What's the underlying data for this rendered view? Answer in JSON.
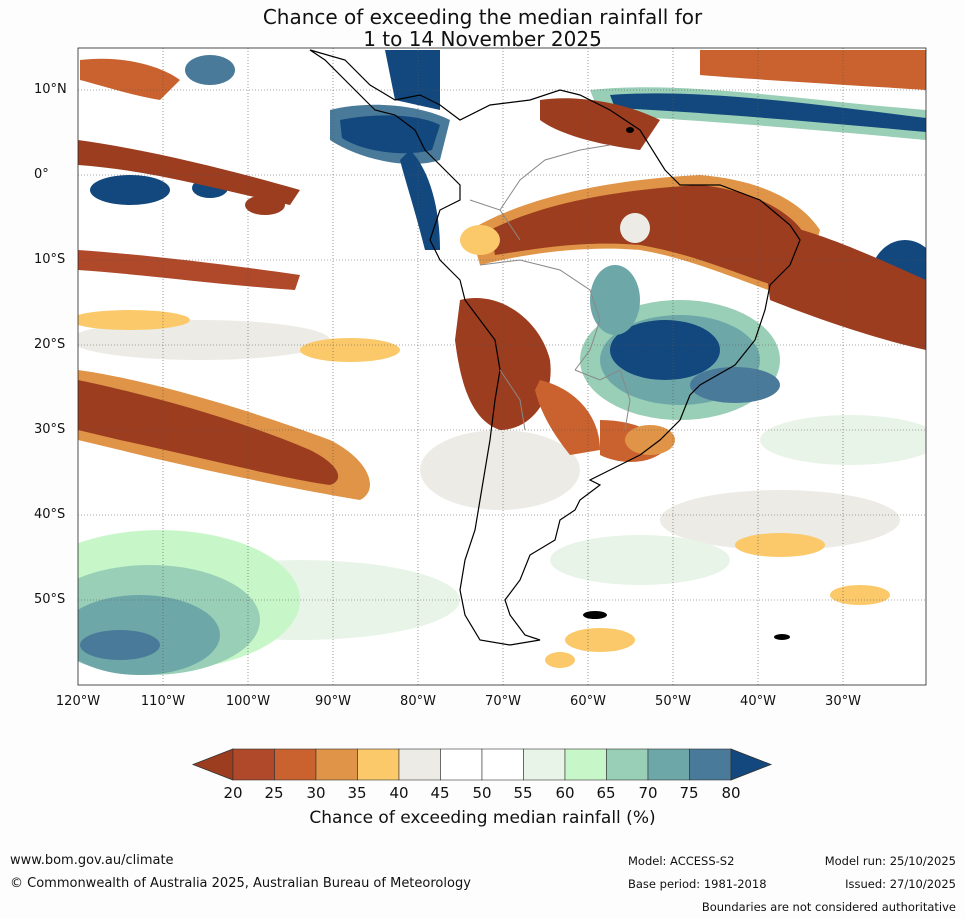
{
  "title": {
    "line1": "Chance of exceeding the median rainfall for",
    "line2": "1 to 14 November 2025"
  },
  "map": {
    "lat_labels": [
      "10°N",
      "0°",
      "10°S",
      "20°S",
      "30°S",
      "40°S",
      "50°S"
    ],
    "lon_labels": [
      "120°W",
      "110°W",
      "100°W",
      "90°W",
      "80°W",
      "70°W",
      "60°W",
      "50°W",
      "40°W",
      "30°W"
    ],
    "extent": {
      "lon_min": -120,
      "lon_max": -20,
      "lat_min": -60,
      "lat_max": 15
    }
  },
  "colorbar": {
    "tick_labels": [
      "20",
      "25",
      "30",
      "35",
      "40",
      "45",
      "50",
      "55",
      "60",
      "65",
      "70",
      "75",
      "80"
    ],
    "colors": [
      "#9c3d1f",
      "#b0482a",
      "#c9622f",
      "#e09448",
      "#fbc96a",
      "#ecebe6",
      "#ffffff",
      "#ffffff",
      "#e9f4e8",
      "#c7f7c8",
      "#98cfb6",
      "#6ea7a8",
      "#4a7a99",
      "#12487e"
    ],
    "label": "Chance of exceeding median rainfall (%)"
  },
  "footer": {
    "url": "www.bom.gov.au/climate",
    "copyright": "© Commonwealth of Australia 2025, Australian Bureau of Meteorology",
    "model": "Model: ACCESS-S2",
    "base_period": "Base period: 1981-2018",
    "model_run": "Model run: 25/10/2025",
    "issued": "Issued: 27/10/2025",
    "disclaimer": "Boundaries are not considered authoritative"
  }
}
